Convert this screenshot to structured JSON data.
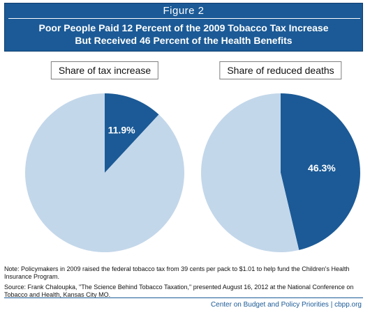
{
  "figure_label": "Figure 2",
  "title_lines": [
    "Poor People Paid 12 Percent of the 2009 Tobacco Tax Increase",
    "But Received 46 Percent of the Health Benefits"
  ],
  "colors": {
    "header_bg": "#1b5a96",
    "highlight_slice": "#1b5a96",
    "remainder_slice": "#c3d7ea",
    "slice_label": "#ffffff"
  },
  "chart_data": [
    {
      "type": "pie",
      "title": "Share of tax increase",
      "slices": [
        {
          "value": 11.9,
          "label": "11.9%",
          "highlight": true
        },
        {
          "value": 88.1,
          "label": "",
          "highlight": false
        }
      ]
    },
    {
      "type": "pie",
      "title": "Share of reduced deaths",
      "slices": [
        {
          "value": 46.3,
          "label": "46.3%",
          "highlight": true
        },
        {
          "value": 53.7,
          "label": "",
          "highlight": false
        }
      ]
    }
  ],
  "notes": {
    "note": "Note: Policymakers in 2009 raised the federal tobacco tax from 39 cents per pack to $1.01 to help fund the Children's Health Insurance Program.",
    "source": "Source: Frank Chaloupka, \"The Science Behind Tobacco Taxation,\" presented August 16, 2012 at the National Conference on Tobacco and Health, Kansas City MO."
  },
  "credit": "Center on Budget and Policy Priorities | cbpp.org"
}
